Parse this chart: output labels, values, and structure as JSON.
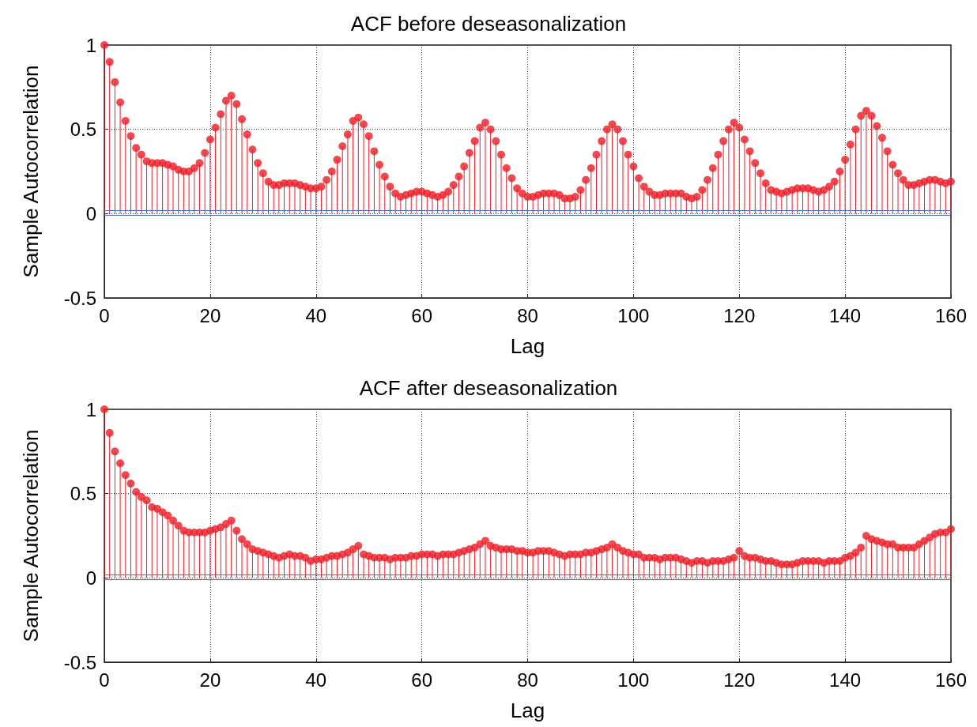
{
  "chart_data": [
    {
      "type": "lollipop",
      "title": "ACF before deseasonalization",
      "xlabel": "Lag",
      "ylabel": "Sample Autocorrelation",
      "color": "#ee1c25",
      "marker": "circle",
      "grid": true,
      "xlim": [
        0,
        160
      ],
      "xticks": [
        0,
        20,
        40,
        60,
        80,
        100,
        120,
        140,
        160
      ],
      "ylim": [
        -0.5,
        1
      ],
      "yticks": [
        -0.5,
        0,
        0.5,
        1
      ],
      "ref_lines": [
        {
          "axis": "y",
          "value": 0.02,
          "color": "#4a6fc1"
        },
        {
          "axis": "y",
          "value": -0.01,
          "color": "#4a6fc1"
        }
      ],
      "x": [
        0,
        1,
        2,
        3,
        4,
        5,
        6,
        7,
        8,
        9,
        10,
        11,
        12,
        13,
        14,
        15,
        16,
        17,
        18,
        19,
        20,
        21,
        22,
        23,
        24,
        25,
        26,
        27,
        28,
        29,
        30,
        31,
        32,
        33,
        34,
        35,
        36,
        37,
        38,
        39,
        40,
        41,
        42,
        43,
        44,
        45,
        46,
        47,
        48,
        49,
        50,
        51,
        52,
        53,
        54,
        55,
        56,
        57,
        58,
        59,
        60,
        61,
        62,
        63,
        64,
        65,
        66,
        67,
        68,
        69,
        70,
        71,
        72,
        73,
        74,
        75,
        76,
        77,
        78,
        79,
        80,
        81,
        82,
        83,
        84,
        85,
        86,
        87,
        88,
        89,
        90,
        91,
        92,
        93,
        94,
        95,
        96,
        97,
        98,
        99,
        100,
        101,
        102,
        103,
        104,
        105,
        106,
        107,
        108,
        109,
        110,
        111,
        112,
        113,
        114,
        115,
        116,
        117,
        118,
        119,
        120,
        121,
        122,
        123,
        124,
        125,
        126,
        127,
        128,
        129,
        130,
        131,
        132,
        133,
        134,
        135,
        136,
        137,
        138,
        139,
        140,
        141,
        142,
        143,
        144,
        145,
        146,
        147,
        148,
        149,
        150,
        151,
        152,
        153,
        154,
        155,
        156,
        157,
        158,
        159,
        160
      ],
      "values": [
        1.0,
        0.9,
        0.78,
        0.66,
        0.55,
        0.46,
        0.39,
        0.35,
        0.31,
        0.3,
        0.3,
        0.3,
        0.29,
        0.28,
        0.26,
        0.25,
        0.25,
        0.27,
        0.3,
        0.36,
        0.44,
        0.51,
        0.59,
        0.67,
        0.7,
        0.65,
        0.56,
        0.47,
        0.38,
        0.3,
        0.24,
        0.19,
        0.17,
        0.17,
        0.18,
        0.18,
        0.18,
        0.17,
        0.16,
        0.15,
        0.15,
        0.16,
        0.2,
        0.25,
        0.32,
        0.4,
        0.47,
        0.55,
        0.57,
        0.53,
        0.46,
        0.37,
        0.29,
        0.22,
        0.16,
        0.12,
        0.1,
        0.11,
        0.12,
        0.13,
        0.13,
        0.12,
        0.11,
        0.1,
        0.11,
        0.13,
        0.17,
        0.22,
        0.28,
        0.36,
        0.43,
        0.51,
        0.54,
        0.5,
        0.43,
        0.35,
        0.27,
        0.21,
        0.15,
        0.12,
        0.1,
        0.1,
        0.11,
        0.12,
        0.12,
        0.12,
        0.11,
        0.09,
        0.09,
        0.1,
        0.14,
        0.2,
        0.27,
        0.35,
        0.43,
        0.5,
        0.53,
        0.5,
        0.43,
        0.35,
        0.28,
        0.21,
        0.16,
        0.13,
        0.11,
        0.11,
        0.12,
        0.12,
        0.12,
        0.12,
        0.1,
        0.09,
        0.1,
        0.14,
        0.2,
        0.27,
        0.35,
        0.43,
        0.5,
        0.54,
        0.51,
        0.44,
        0.37,
        0.3,
        0.24,
        0.18,
        0.14,
        0.13,
        0.12,
        0.13,
        0.14,
        0.15,
        0.15,
        0.15,
        0.14,
        0.13,
        0.14,
        0.16,
        0.19,
        0.25,
        0.32,
        0.41,
        0.5,
        0.58,
        0.61,
        0.58,
        0.52,
        0.45,
        0.37,
        0.29,
        0.24,
        0.2,
        0.17,
        0.17,
        0.18,
        0.19,
        0.2,
        0.2,
        0.19,
        0.18,
        0.19
      ]
    },
    {
      "type": "lollipop",
      "title": "ACF after deseasonalization",
      "xlabel": "Lag",
      "ylabel": "Sample Autocorrelation",
      "color": "#ee1c25",
      "marker": "circle",
      "grid": true,
      "xlim": [
        0,
        160
      ],
      "xticks": [
        0,
        20,
        40,
        60,
        80,
        100,
        120,
        140,
        160
      ],
      "ylim": [
        -0.5,
        1
      ],
      "yticks": [
        -0.5,
        0,
        0.5,
        1
      ],
      "ref_lines": [
        {
          "axis": "y",
          "value": 0.02,
          "color": "#4a6fc1"
        },
        {
          "axis": "y",
          "value": -0.01,
          "color": "#4a6fc1"
        }
      ],
      "x": [
        0,
        1,
        2,
        3,
        4,
        5,
        6,
        7,
        8,
        9,
        10,
        11,
        12,
        13,
        14,
        15,
        16,
        17,
        18,
        19,
        20,
        21,
        22,
        23,
        24,
        25,
        26,
        27,
        28,
        29,
        30,
        31,
        32,
        33,
        34,
        35,
        36,
        37,
        38,
        39,
        40,
        41,
        42,
        43,
        44,
        45,
        46,
        47,
        48,
        49,
        50,
        51,
        52,
        53,
        54,
        55,
        56,
        57,
        58,
        59,
        60,
        61,
        62,
        63,
        64,
        65,
        66,
        67,
        68,
        69,
        70,
        71,
        72,
        73,
        74,
        75,
        76,
        77,
        78,
        79,
        80,
        81,
        82,
        83,
        84,
        85,
        86,
        87,
        88,
        89,
        90,
        91,
        92,
        93,
        94,
        95,
        96,
        97,
        98,
        99,
        100,
        101,
        102,
        103,
        104,
        105,
        106,
        107,
        108,
        109,
        110,
        111,
        112,
        113,
        114,
        115,
        116,
        117,
        118,
        119,
        120,
        121,
        122,
        123,
        124,
        125,
        126,
        127,
        128,
        129,
        130,
        131,
        132,
        133,
        134,
        135,
        136,
        137,
        138,
        139,
        140,
        141,
        142,
        143,
        144,
        145,
        146,
        147,
        148,
        149,
        150,
        151,
        152,
        153,
        154,
        155,
        156,
        157,
        158,
        159,
        160
      ],
      "values": [
        1.0,
        0.86,
        0.75,
        0.68,
        0.61,
        0.56,
        0.51,
        0.48,
        0.46,
        0.42,
        0.41,
        0.39,
        0.37,
        0.34,
        0.31,
        0.28,
        0.27,
        0.27,
        0.27,
        0.27,
        0.28,
        0.29,
        0.3,
        0.32,
        0.34,
        0.28,
        0.23,
        0.2,
        0.17,
        0.16,
        0.15,
        0.14,
        0.13,
        0.12,
        0.13,
        0.14,
        0.13,
        0.13,
        0.12,
        0.1,
        0.11,
        0.11,
        0.12,
        0.13,
        0.13,
        0.14,
        0.15,
        0.17,
        0.19,
        0.14,
        0.13,
        0.12,
        0.12,
        0.12,
        0.11,
        0.12,
        0.12,
        0.12,
        0.13,
        0.13,
        0.14,
        0.14,
        0.14,
        0.13,
        0.14,
        0.14,
        0.14,
        0.15,
        0.16,
        0.17,
        0.18,
        0.2,
        0.22,
        0.19,
        0.18,
        0.17,
        0.17,
        0.17,
        0.16,
        0.16,
        0.15,
        0.15,
        0.16,
        0.16,
        0.16,
        0.15,
        0.14,
        0.13,
        0.14,
        0.14,
        0.14,
        0.15,
        0.15,
        0.16,
        0.17,
        0.18,
        0.2,
        0.18,
        0.16,
        0.15,
        0.14,
        0.14,
        0.12,
        0.12,
        0.12,
        0.11,
        0.12,
        0.12,
        0.12,
        0.11,
        0.1,
        0.09,
        0.1,
        0.1,
        0.09,
        0.1,
        0.1,
        0.1,
        0.11,
        0.12,
        0.16,
        0.13,
        0.12,
        0.12,
        0.11,
        0.1,
        0.1,
        0.09,
        0.08,
        0.08,
        0.08,
        0.09,
        0.1,
        0.1,
        0.1,
        0.1,
        0.09,
        0.1,
        0.1,
        0.1,
        0.12,
        0.13,
        0.15,
        0.18,
        0.25,
        0.23,
        0.22,
        0.21,
        0.2,
        0.2,
        0.18,
        0.18,
        0.18,
        0.18,
        0.2,
        0.22,
        0.24,
        0.26,
        0.27,
        0.27,
        0.29
      ]
    }
  ]
}
